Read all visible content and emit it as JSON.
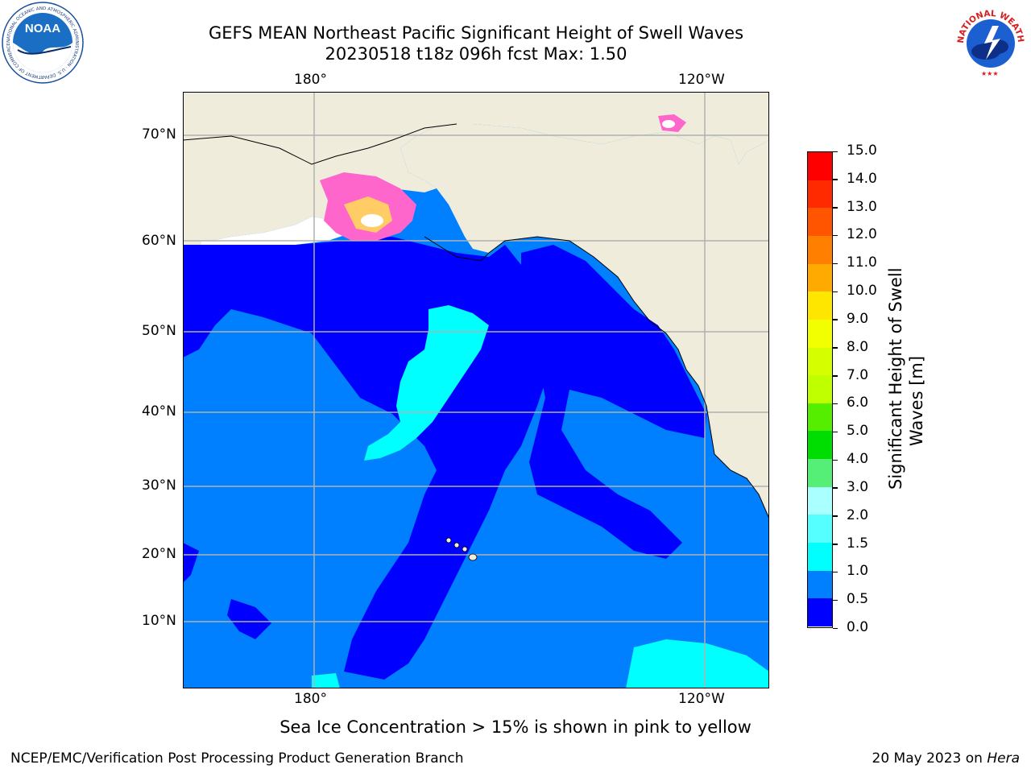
{
  "title_line1": "GEFS MEAN Northeast Pacific Significant Height of Swell Waves",
  "title_line2": "20230518 t18z 096h fcst   Max: 1.50",
  "logos": {
    "left": "noara-logo",
    "left_text": "NATIONAL OCEANIC AND ATMOSPHERIC ADMINISTRATION · U.S. DEPARTMENT OF COMMERCE",
    "left_word": "NOAA",
    "right": "nws-logo",
    "right_text": "NATIONAL WEATHER SERVICE"
  },
  "map": {
    "lon_labels": [
      "180°",
      "120°W"
    ],
    "lat_labels": [
      "70°N",
      "60°N",
      "50°N",
      "40°N",
      "30°N",
      "20°N",
      "10°N"
    ],
    "colors": {
      "land": "#efecdc",
      "sea_0_0_5": "#0000ff",
      "sea_0_5_1": "#0080ff",
      "sea_1_1_5": "#00ffff",
      "ice_pink": "#ff66cc",
      "ice_yellow": "#ffcc66",
      "grid": "#b0b0b0"
    }
  },
  "colorbar": {
    "title_line1": "Significant Height of Swell",
    "title_line2": "Waves [m]",
    "tick_labels": [
      "15.0",
      "14.0",
      "13.0",
      "12.0",
      "11.0",
      "10.0",
      "9.0",
      "8.0",
      "7.0",
      "6.0",
      "5.0",
      "4.0",
      "3.0",
      "2.0",
      "1.5",
      "1.0",
      "0.5",
      "0.0"
    ],
    "bins": [
      {
        "range": "14.0-15.0",
        "color": "#ff0000"
      },
      {
        "range": "13.0-14.0",
        "color": "#ff2a00"
      },
      {
        "range": "12.0-13.0",
        "color": "#ff5500"
      },
      {
        "range": "11.0-12.0",
        "color": "#ff8000"
      },
      {
        "range": "10.0-11.0",
        "color": "#ffaa00"
      },
      {
        "range": "9.0-10.0",
        "color": "#ffe600"
      },
      {
        "range": "8.0-9.0",
        "color": "#f2ff00"
      },
      {
        "range": "7.0-8.0",
        "color": "#d5ff00"
      },
      {
        "range": "6.0-7.0",
        "color": "#bfff00"
      },
      {
        "range": "5.0-6.0",
        "color": "#55ee00"
      },
      {
        "range": "4.0-5.0",
        "color": "#00dd00"
      },
      {
        "range": "3.0-4.0",
        "color": "#55ee77"
      },
      {
        "range": "2.0-3.0",
        "color": "#aaffff"
      },
      {
        "range": "1.5-2.0",
        "color": "#55ffff"
      },
      {
        "range": "1.0-1.5",
        "color": "#00ffff"
      },
      {
        "range": "0.5-1.0",
        "color": "#0080ff"
      },
      {
        "range": "0.0-0.5",
        "color": "#0000ff"
      }
    ]
  },
  "note": "Sea Ice Concentration > 15% is shown in pink to yellow",
  "footer_left": "NCEP/EMC/Verification Post Processing Product Generation Branch",
  "footer_right_prefix": "20 May 2023 on ",
  "footer_right_host": "Hera"
}
